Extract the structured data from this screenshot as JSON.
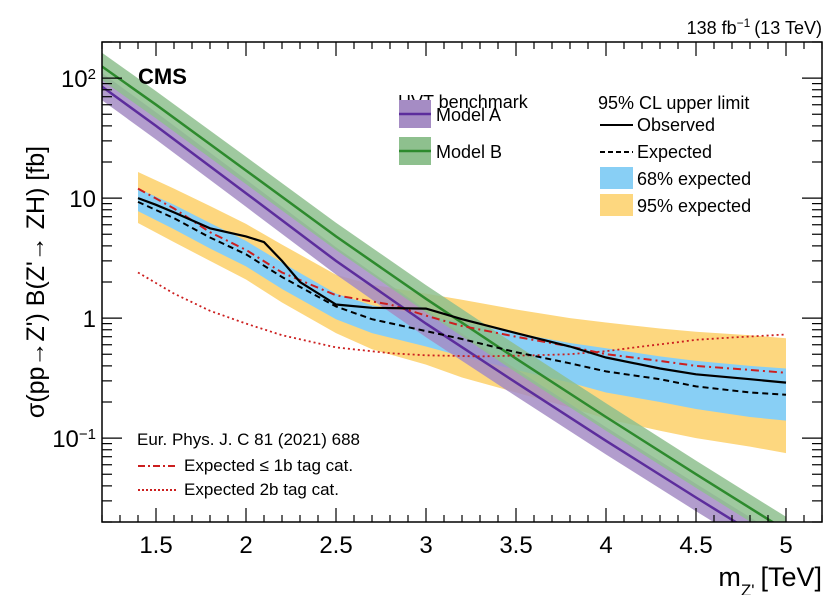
{
  "header": {
    "lumi": "138 fb",
    "lumi_exp": "−1",
    "energy": "(13 TeV)"
  },
  "colors": {
    "observed": "#000000",
    "expected": "#000000",
    "band68": "#88cff5",
    "band95": "#fdd77f",
    "model_a_line": "#5c2d9c",
    "model_a_band": "#a58cc4",
    "model_b_line": "#2d8a2d",
    "model_b_band": "#8ec08e",
    "exp1b": "#cc1f1f",
    "exp2b": "#cc1f1f"
  },
  "chart_data": {
    "type": "line",
    "experiment": "CMS",
    "xlabel_main": "m",
    "xlabel_sub": "Z'",
    "xlabel_unit": "[TeV]",
    "ylabel": "σ(pp→Z') B(Z'→ ZH) [fb]",
    "xlim": [
      1.2,
      5.2
    ],
    "ylim": [
      0.02,
      200
    ],
    "yscale": "log",
    "x_ticks": [
      {
        "v": 1.5,
        "label": "1.5"
      },
      {
        "v": 2,
        "label": "2"
      },
      {
        "v": 2.5,
        "label": "2.5"
      },
      {
        "v": 3,
        "label": "3"
      },
      {
        "v": 3.5,
        "label": "3.5"
      },
      {
        "v": 4,
        "label": "4"
      },
      {
        "v": 4.5,
        "label": "4.5"
      },
      {
        "v": 5,
        "label": "5"
      }
    ],
    "y_ticks": [
      {
        "v": 0.1,
        "base": "10",
        "exp": "−1"
      },
      {
        "v": 1,
        "base": "1",
        "exp": ""
      },
      {
        "v": 10,
        "base": "10",
        "exp": ""
      },
      {
        "v": 100,
        "base": "10",
        "exp": "2"
      }
    ],
    "legend_hvt": {
      "title": "HVT benchmark",
      "entries": [
        {
          "label": "Model A",
          "color_key": "model_a"
        },
        {
          "label": "Model B",
          "color_key": "model_b"
        }
      ]
    },
    "legend_limits": {
      "title": "95% CL upper limit",
      "entries": [
        {
          "label": "Observed",
          "style": "solid"
        },
        {
          "label": "Expected",
          "style": "dashed"
        },
        {
          "label": "68% expected",
          "style": "band68"
        },
        {
          "label": "95% expected",
          "style": "band95"
        }
      ]
    },
    "legend_ref": {
      "title": "Eur. Phys. J. C 81 (2021) 688",
      "entries": [
        {
          "label": "Expected ≤ 1b tag cat.",
          "style": "dashdot"
        },
        {
          "label": "Expected 2b tag cat.",
          "style": "dotted"
        }
      ]
    },
    "series": [
      {
        "name": "Observed",
        "x": [
          1.4,
          1.5,
          1.6,
          1.8,
          2.0,
          2.1,
          2.2,
          2.3,
          2.5,
          2.7,
          3.0,
          3.2,
          3.5,
          3.8,
          4.0,
          4.3,
          4.5,
          4.8,
          5.0
        ],
        "y": [
          10.0,
          8.8,
          7.6,
          5.6,
          4.8,
          4.3,
          3.0,
          2.0,
          1.3,
          1.22,
          1.2,
          0.98,
          0.75,
          0.58,
          0.47,
          0.38,
          0.34,
          0.31,
          0.29
        ]
      },
      {
        "name": "Expected",
        "x": [
          1.4,
          1.6,
          1.8,
          2.0,
          2.2,
          2.5,
          2.7,
          3.0,
          3.2,
          3.5,
          3.8,
          4.0,
          4.3,
          4.5,
          4.8,
          5.0
        ],
        "y": [
          9.3,
          6.8,
          4.7,
          3.4,
          2.2,
          1.25,
          0.98,
          0.78,
          0.67,
          0.52,
          0.42,
          0.36,
          0.31,
          0.27,
          0.24,
          0.23
        ]
      },
      {
        "name": "Expected ≤ 1b tag cat.",
        "x": [
          1.4,
          1.6,
          1.8,
          2.0,
          2.2,
          2.5,
          2.8,
          3.0,
          3.2,
          3.5,
          3.8,
          4.0,
          4.3,
          4.5,
          4.8,
          5.0
        ],
        "y": [
          12.0,
          8.2,
          5.2,
          3.7,
          2.4,
          1.55,
          1.3,
          1.05,
          0.86,
          0.7,
          0.58,
          0.5,
          0.44,
          0.4,
          0.37,
          0.35
        ]
      },
      {
        "name": "Expected 2b tag cat.",
        "x": [
          1.4,
          1.6,
          1.8,
          2.0,
          2.2,
          2.5,
          2.8,
          3.0,
          3.3,
          3.6,
          3.8,
          4.0,
          4.2,
          4.4,
          4.5,
          4.7,
          5.0
        ],
        "y": [
          2.4,
          1.6,
          1.15,
          0.9,
          0.72,
          0.57,
          0.51,
          0.49,
          0.48,
          0.49,
          0.5,
          0.53,
          0.58,
          0.63,
          0.66,
          0.69,
          0.73
        ]
      },
      {
        "name": "Model A",
        "x": [
          1.2,
          1.5,
          2.0,
          2.5,
          3.0,
          3.5,
          4.0,
          4.5,
          5.0
        ],
        "y": [
          85,
          40,
          11,
          3.0,
          0.9,
          0.29,
          0.095,
          0.032,
          0.011
        ],
        "band_factor": 1.3
      },
      {
        "name": "Model B",
        "x": [
          1.2,
          1.5,
          2.0,
          2.5,
          3.0,
          3.5,
          4.0,
          4.5,
          5.0
        ],
        "y": [
          125,
          60,
          17,
          4.8,
          1.45,
          0.46,
          0.15,
          0.05,
          0.017
        ],
        "band_factor": 1.3
      }
    ],
    "band68": {
      "x": [
        1.4,
        1.6,
        1.8,
        2.0,
        2.2,
        2.5,
        2.7,
        3.0,
        3.2,
        3.5,
        3.8,
        4.0,
        4.3,
        4.5,
        4.8,
        5.0
      ],
      "low": [
        7.8,
        5.5,
        3.8,
        2.7,
        1.75,
        0.98,
        0.75,
        0.58,
        0.48,
        0.37,
        0.29,
        0.24,
        0.2,
        0.175,
        0.15,
        0.14
      ],
      "high": [
        12.0,
        8.8,
        6.2,
        4.4,
        2.9,
        1.6,
        1.28,
        1.05,
        0.92,
        0.75,
        0.62,
        0.56,
        0.48,
        0.44,
        0.4,
        0.38
      ]
    },
    "band95": {
      "x": [
        1.4,
        1.6,
        1.8,
        2.0,
        2.2,
        2.5,
        2.7,
        3.0,
        3.2,
        3.5,
        3.8,
        4.0,
        4.3,
        4.5,
        4.8,
        5.0
      ],
      "low": [
        6.2,
        4.3,
        3.0,
        2.1,
        1.35,
        0.75,
        0.55,
        0.41,
        0.32,
        0.24,
        0.18,
        0.145,
        0.115,
        0.1,
        0.085,
        0.075
      ],
      "high": [
        16.5,
        12.0,
        8.6,
        6.1,
        4.1,
        2.3,
        1.9,
        1.6,
        1.42,
        1.18,
        1.0,
        0.92,
        0.82,
        0.77,
        0.72,
        0.68
      ]
    }
  }
}
